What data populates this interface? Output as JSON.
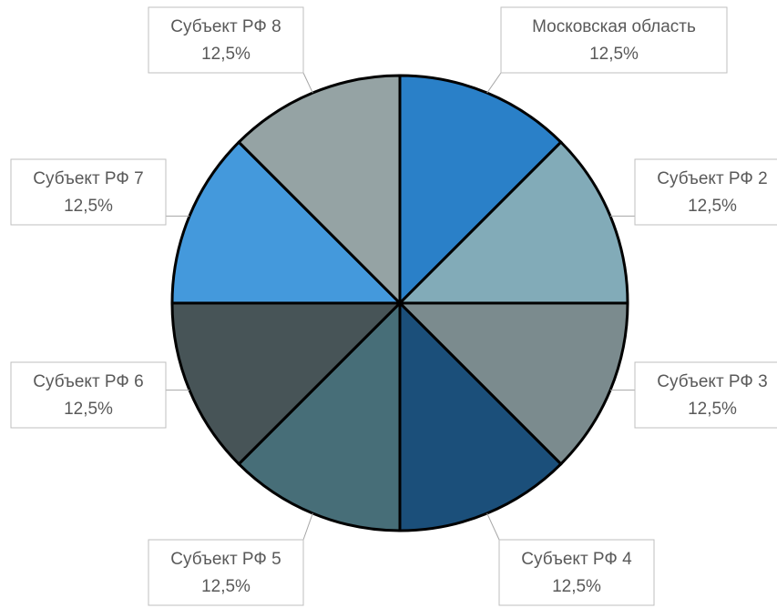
{
  "chart_data": {
    "type": "pie",
    "categories": [
      "Московская область",
      "Субъект РФ 2",
      "Субъект РФ 3",
      "Субъект РФ 4",
      "Субъект РФ 5",
      "Субъект РФ 6",
      "Субъект РФ 7",
      "Субъект РФ 8"
    ],
    "values": [
      12.5,
      12.5,
      12.5,
      12.5,
      12.5,
      12.5,
      12.5,
      12.5
    ],
    "value_labels": [
      "12,5%",
      "12,5%",
      "12,5%",
      "12,5%",
      "12,5%",
      "12,5%",
      "12,5%",
      "12,5%"
    ],
    "colors": [
      "#2a80c8",
      "#82abb8",
      "#7b8b8e",
      "#1b4f7a",
      "#476e78",
      "#475457",
      "#4499dc",
      "#95a3a4"
    ]
  }
}
